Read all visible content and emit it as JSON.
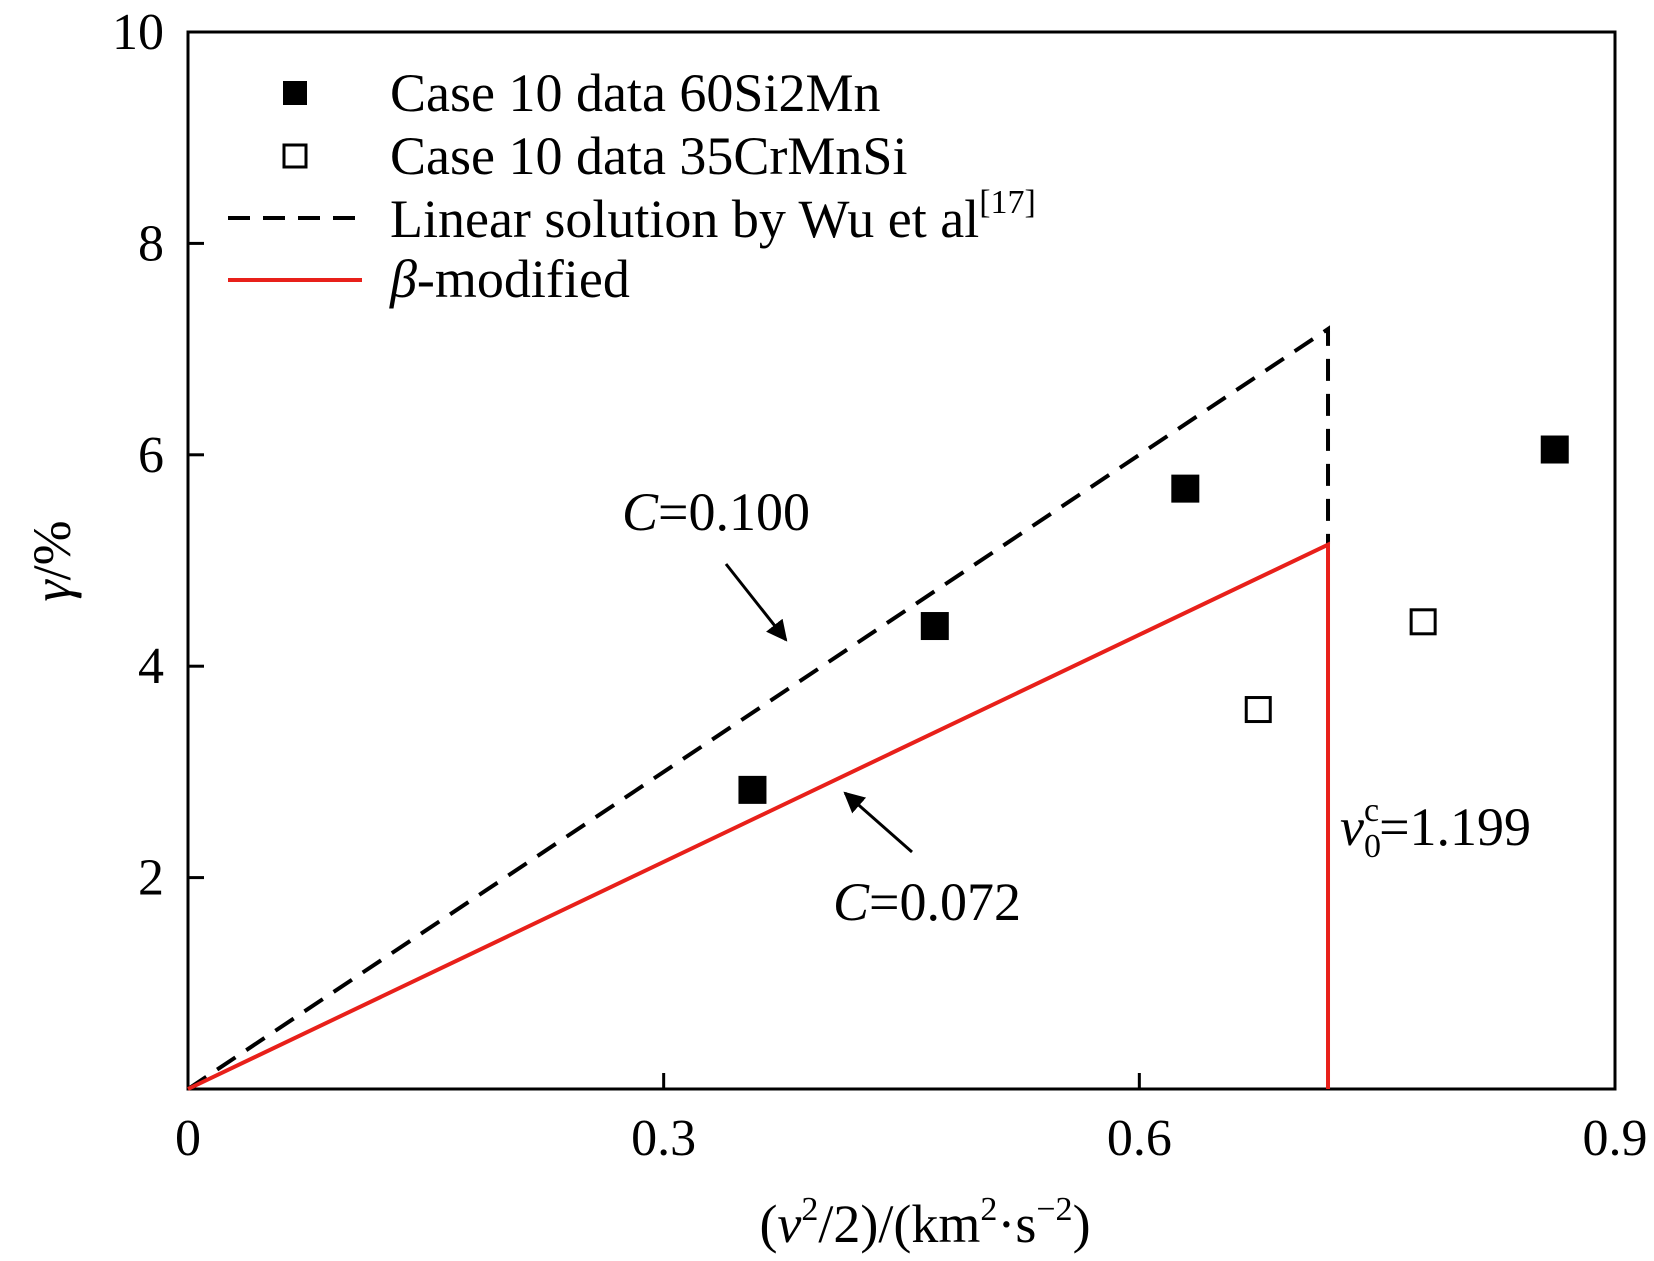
{
  "chart_data": {
    "type": "scatter",
    "title": "",
    "xlabel": {
      "pre": "(",
      "v": "v",
      "exp1": "2",
      "mid": "/2)/(km",
      "exp2": "2",
      "mid2": "·s",
      "exp3": "−2",
      "post": ")"
    },
    "ylabel": {
      "gamma": "γ",
      "unit": "/%"
    },
    "xlim": [
      0,
      0.9
    ],
    "ylim": [
      0,
      10
    ],
    "x_ticks": [
      0,
      0.3,
      0.6,
      0.9
    ],
    "x_tick_labels": [
      "0",
      "0.3",
      "0.6",
      "0.9"
    ],
    "y_ticks": [
      2,
      4,
      6,
      8,
      10
    ],
    "y_tick_labels": [
      "2",
      "4",
      "6",
      "8",
      "10"
    ],
    "grid": false,
    "legend_position": "top-left",
    "series": [
      {
        "name": "Case 10 data 60Si2Mn",
        "kind": "scatter",
        "marker": "filled-square",
        "points": [
          [
            0.356,
            2.83
          ],
          [
            0.471,
            4.38
          ],
          [
            0.629,
            5.68
          ],
          [
            0.862,
            6.05
          ]
        ]
      },
      {
        "name": "Case 10 data 35CrMnSi",
        "kind": "scatter",
        "marker": "open-square",
        "points": [
          [
            0.675,
            3.59
          ],
          [
            0.779,
            4.42
          ]
        ]
      },
      {
        "name_main": "Linear solution by Wu et al",
        "name_sup": "[17]",
        "kind": "line",
        "style": "dashed",
        "color": "#000000",
        "points": [
          [
            0,
            0
          ],
          [
            0.719,
            7.19
          ],
          [
            0.719,
            5.15
          ]
        ]
      },
      {
        "name_greek": "β",
        "name_rest": "-modified",
        "kind": "line",
        "style": "solid",
        "color": "#e8201a",
        "points": [
          [
            0,
            0
          ],
          [
            0.719,
            5.15
          ],
          [
            0.719,
            0
          ]
        ]
      }
    ],
    "annotations": [
      {
        "var": "C",
        "text": "=0.100"
      },
      {
        "var": "C",
        "text": "=0.072"
      },
      {
        "var": "v",
        "sub": "0",
        "sup": "c",
        "text": "=1.199"
      }
    ]
  }
}
